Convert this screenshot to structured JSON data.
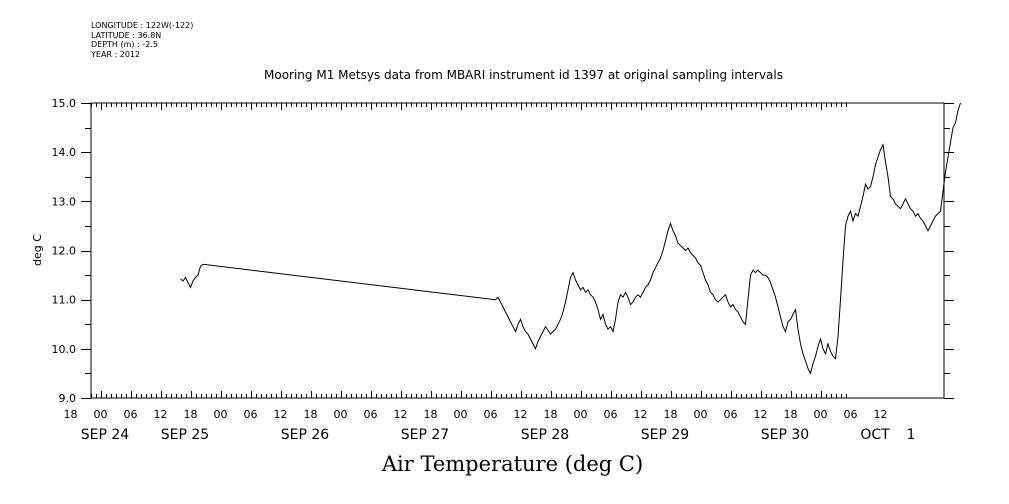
{
  "header": {
    "longitude": "LONGITUDE : 122W(-122)",
    "latitude": "LATITUDE : 36.8N",
    "depth": "DEPTH (m) : -2.5",
    "year": "YEAR : 2012"
  },
  "chart_data": {
    "type": "line",
    "title": "Mooring M1 Metsys data from MBARI instrument id 1397 at original sampling intervals",
    "xlabel": "",
    "ylabel": "deg C",
    "footer_title": "Air Temperature (deg C)",
    "x_range_hours": [
      -8,
      149
    ],
    "x_origin": "2012-09-24 00:00",
    "ylim": [
      9.0,
      15.0
    ],
    "y_ticks": [
      9.0,
      10.0,
      11.0,
      12.0,
      13.0,
      14.0,
      15.0
    ],
    "y_tick_labels": [
      "9.0",
      "10.0",
      "11.0",
      "12.0",
      "13.0",
      "14.0",
      "15.0"
    ],
    "hour_tick_labels": [
      "18",
      "00",
      "06",
      "12",
      "18",
      "00",
      "06",
      "12",
      "18",
      "00",
      "06",
      "12",
      "18",
      "00",
      "06",
      "12",
      "18",
      "00",
      "06",
      "12",
      "18",
      "00",
      "06",
      "12",
      "18",
      "00",
      "06",
      "12"
    ],
    "date_labels": [
      "SEP 24",
      "SEP 25",
      "SEP 26",
      "SEP 27",
      "SEP 28",
      "SEP 29",
      "SEP 30",
      "OCT",
      "1"
    ],
    "grid": false,
    "series": [
      {
        "name": "",
        "color": "#000000",
        "points": [
          [
            16,
            11.42
          ],
          [
            16.5,
            11.38
          ],
          [
            17,
            11.45
          ],
          [
            17.5,
            11.35
          ],
          [
            18,
            11.25
          ],
          [
            18.5,
            11.38
          ],
          [
            19,
            11.45
          ],
          [
            19.5,
            11.5
          ],
          [
            20,
            11.68
          ],
          [
            20.5,
            11.72
          ],
          [
            79,
            11.0
          ],
          [
            79.5,
            11.05
          ],
          [
            80,
            10.95
          ],
          [
            80.5,
            10.85
          ],
          [
            81,
            10.75
          ],
          [
            81.5,
            10.65
          ],
          [
            82,
            10.55
          ],
          [
            82.5,
            10.45
          ],
          [
            83,
            10.35
          ],
          [
            83.5,
            10.5
          ],
          [
            84,
            10.6
          ],
          [
            84.5,
            10.45
          ],
          [
            85,
            10.35
          ],
          [
            85.5,
            10.3
          ],
          [
            86,
            10.2
          ],
          [
            86.5,
            10.1
          ],
          [
            87,
            10.0
          ],
          [
            87.5,
            10.15
          ],
          [
            88,
            10.25
          ],
          [
            88.5,
            10.35
          ],
          [
            89,
            10.45
          ],
          [
            89.5,
            10.38
          ],
          [
            90,
            10.3
          ],
          [
            90.5,
            10.35
          ],
          [
            91,
            10.4
          ],
          [
            91.5,
            10.5
          ],
          [
            92,
            10.6
          ],
          [
            92.5,
            10.75
          ],
          [
            93,
            10.95
          ],
          [
            93.5,
            11.2
          ],
          [
            94,
            11.45
          ],
          [
            94.5,
            11.55
          ],
          [
            95,
            11.4
          ],
          [
            95.5,
            11.3
          ],
          [
            96,
            11.2
          ],
          [
            96.5,
            11.25
          ],
          [
            97,
            11.15
          ],
          [
            97.5,
            11.2
          ],
          [
            98,
            11.1
          ],
          [
            98.5,
            11.05
          ],
          [
            99,
            10.95
          ],
          [
            99.5,
            10.8
          ],
          [
            100,
            10.6
          ],
          [
            100.5,
            10.7
          ],
          [
            101,
            10.5
          ],
          [
            101.5,
            10.4
          ],
          [
            102,
            10.45
          ],
          [
            102.5,
            10.35
          ],
          [
            103,
            10.6
          ],
          [
            103.5,
            10.95
          ],
          [
            104,
            11.1
          ],
          [
            104.5,
            11.05
          ],
          [
            105,
            11.15
          ],
          [
            105.5,
            11.05
          ],
          [
            106,
            10.9
          ],
          [
            106.5,
            10.95
          ],
          [
            107,
            11.05
          ],
          [
            107.5,
            11.1
          ],
          [
            108,
            11.05
          ],
          [
            108.5,
            11.15
          ],
          [
            109,
            11.25
          ],
          [
            109.5,
            11.3
          ],
          [
            110,
            11.4
          ],
          [
            110.5,
            11.55
          ],
          [
            111,
            11.65
          ],
          [
            111.5,
            11.75
          ],
          [
            112,
            11.85
          ],
          [
            112.5,
            12.0
          ],
          [
            113,
            12.2
          ],
          [
            113.5,
            12.4
          ],
          [
            114,
            12.55
          ],
          [
            114.5,
            12.4
          ],
          [
            115,
            12.3
          ],
          [
            115.5,
            12.15
          ],
          [
            116,
            12.1
          ],
          [
            116.5,
            12.05
          ],
          [
            117,
            12.0
          ],
          [
            117.5,
            12.05
          ],
          [
            118,
            11.95
          ],
          [
            118.5,
            11.9
          ],
          [
            119,
            11.85
          ],
          [
            119.5,
            11.75
          ],
          [
            120,
            11.7
          ],
          [
            120.5,
            11.55
          ],
          [
            121,
            11.4
          ],
          [
            121.5,
            11.3
          ],
          [
            122,
            11.15
          ],
          [
            122.5,
            11.1
          ],
          [
            123,
            11.0
          ],
          [
            123.5,
            10.95
          ],
          [
            124,
            11.0
          ],
          [
            124.5,
            11.05
          ],
          [
            125,
            11.1
          ],
          [
            125.5,
            10.95
          ],
          [
            126,
            10.85
          ],
          [
            126.5,
            10.9
          ],
          [
            127,
            10.8
          ],
          [
            127.5,
            10.75
          ],
          [
            128,
            10.65
          ],
          [
            128.5,
            10.55
          ],
          [
            129,
            10.5
          ],
          [
            129.5,
            11.0
          ],
          [
            130,
            11.5
          ],
          [
            130.5,
            11.6
          ],
          [
            131,
            11.55
          ],
          [
            131.5,
            11.6
          ],
          [
            132,
            11.55
          ],
          [
            132.5,
            11.5
          ],
          [
            133,
            11.5
          ],
          [
            133.5,
            11.45
          ],
          [
            134,
            11.35
          ],
          [
            134.5,
            11.2
          ],
          [
            135,
            11.05
          ],
          [
            135.5,
            10.85
          ],
          [
            136,
            10.65
          ],
          [
            136.5,
            10.45
          ],
          [
            137,
            10.35
          ],
          [
            137.5,
            10.55
          ],
          [
            138,
            10.6
          ],
          [
            138.5,
            10.7
          ],
          [
            139,
            10.8
          ],
          [
            139.5,
            10.4
          ],
          [
            140,
            10.1
          ],
          [
            140.5,
            9.9
          ],
          [
            141,
            9.75
          ],
          [
            141.5,
            9.6
          ],
          [
            142,
            9.5
          ],
          [
            142.5,
            9.7
          ],
          [
            143,
            9.85
          ],
          [
            143.5,
            10.05
          ],
          [
            144,
            10.2
          ],
          [
            144.5,
            10.0
          ],
          [
            145,
            9.9
          ],
          [
            145.5,
            10.1
          ],
          [
            146,
            9.95
          ],
          [
            146.5,
            9.85
          ],
          [
            147,
            9.8
          ],
          [
            147.5,
            10.25
          ],
          [
            148,
            11.0
          ],
          [
            148.5,
            11.8
          ],
          [
            149,
            12.5
          ],
          [
            149.5,
            12.7
          ],
          [
            150,
            12.8
          ],
          [
            150.5,
            12.6
          ],
          [
            151,
            12.75
          ],
          [
            151.5,
            12.7
          ],
          [
            152,
            12.9
          ],
          [
            152.5,
            13.1
          ],
          [
            153,
            13.35
          ],
          [
            153.5,
            13.25
          ],
          [
            154,
            13.3
          ],
          [
            154.5,
            13.5
          ],
          [
            155,
            13.75
          ],
          [
            155.5,
            13.9
          ],
          [
            156,
            14.05
          ],
          [
            156.5,
            14.15
          ],
          [
            157,
            13.8
          ],
          [
            157.5,
            13.5
          ],
          [
            158,
            13.1
          ],
          [
            158.5,
            13.05
          ],
          [
            159,
            12.95
          ],
          [
            159.5,
            12.9
          ],
          [
            160,
            12.85
          ],
          [
            160.5,
            12.95
          ],
          [
            161,
            13.05
          ],
          [
            161.5,
            12.95
          ],
          [
            162,
            12.85
          ],
          [
            162.5,
            12.8
          ],
          [
            163,
            12.7
          ],
          [
            163.5,
            12.75
          ],
          [
            164,
            12.65
          ],
          [
            164.5,
            12.6
          ],
          [
            165,
            12.5
          ],
          [
            165.5,
            12.4
          ],
          [
            166,
            12.5
          ],
          [
            166.5,
            12.6
          ],
          [
            167,
            12.7
          ],
          [
            167.5,
            12.75
          ],
          [
            168,
            12.8
          ],
          [
            168.5,
            13.2
          ],
          [
            169,
            13.6
          ],
          [
            169.5,
            13.9
          ],
          [
            170,
            14.2
          ],
          [
            170.5,
            14.5
          ],
          [
            171,
            14.6
          ],
          [
            171.5,
            14.85
          ],
          [
            172,
            15.0
          ]
        ]
      }
    ]
  }
}
